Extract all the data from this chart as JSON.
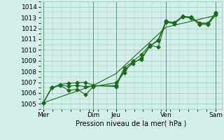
{
  "xlabel": "Pression niveau de la mer( hPa )",
  "ylim": [
    1004.5,
    1014.5
  ],
  "yticks": [
    1005,
    1006,
    1007,
    1008,
    1009,
    1010,
    1011,
    1012,
    1013,
    1014
  ],
  "xtick_positions": [
    0.0,
    1.65,
    2.4,
    4.05,
    5.7
  ],
  "xtick_labels": [
    "Mer",
    "Dim",
    "Jeu",
    "Ven",
    "Sam"
  ],
  "vlines": [
    0.0,
    1.65,
    2.4,
    4.05,
    5.7
  ],
  "background_color": "#d4eeea",
  "grid_color": "#9ec8be",
  "line_color": "#1a6b1a",
  "line1_x": [
    0.0,
    0.28,
    0.56,
    0.84,
    1.12,
    1.4,
    1.65,
    2.4,
    2.68,
    2.96,
    3.24,
    3.52,
    3.8,
    4.05,
    4.33,
    4.61,
    4.89,
    5.17,
    5.45,
    5.7
  ],
  "line1_y": [
    1005.1,
    1006.5,
    1006.7,
    1006.65,
    1006.7,
    1006.6,
    1006.65,
    1006.7,
    1008.35,
    1008.9,
    1009.1,
    1010.35,
    1010.95,
    1012.65,
    1012.55,
    1013.1,
    1013.05,
    1012.45,
    1012.45,
    1013.4
  ],
  "line2_x": [
    0.0,
    0.28,
    0.56,
    0.84,
    1.12,
    1.4,
    1.65,
    2.4,
    2.68,
    2.96,
    3.24,
    3.52,
    3.8,
    4.05,
    4.33,
    4.61,
    4.89,
    5.17,
    5.45,
    5.7
  ],
  "line2_y": [
    1005.1,
    1006.5,
    1006.7,
    1006.25,
    1006.35,
    1005.85,
    1006.6,
    1006.95,
    1007.9,
    1008.95,
    1009.55,
    1010.45,
    1010.25,
    1012.65,
    1012.45,
    1013.15,
    1013.0,
    1012.5,
    1012.5,
    1013.45
  ],
  "line3_x": [
    0.0,
    0.28,
    0.56,
    0.84,
    1.12,
    1.4,
    1.65,
    2.4,
    2.68,
    2.96,
    3.24,
    3.52,
    3.8,
    4.05,
    4.33,
    4.61,
    4.89,
    5.17,
    5.45,
    5.7
  ],
  "line3_y": [
    1005.1,
    1006.5,
    1006.8,
    1006.9,
    1006.95,
    1007.0,
    1006.7,
    1006.6,
    1008.15,
    1008.75,
    1009.25,
    1010.35,
    1010.85,
    1012.55,
    1012.45,
    1013.05,
    1012.95,
    1012.35,
    1012.35,
    1013.25
  ],
  "line4_x": [
    0.0,
    1.65,
    2.4,
    4.05,
    5.7
  ],
  "line4_y": [
    1005.1,
    1006.7,
    1007.8,
    1012.1,
    1013.2
  ]
}
